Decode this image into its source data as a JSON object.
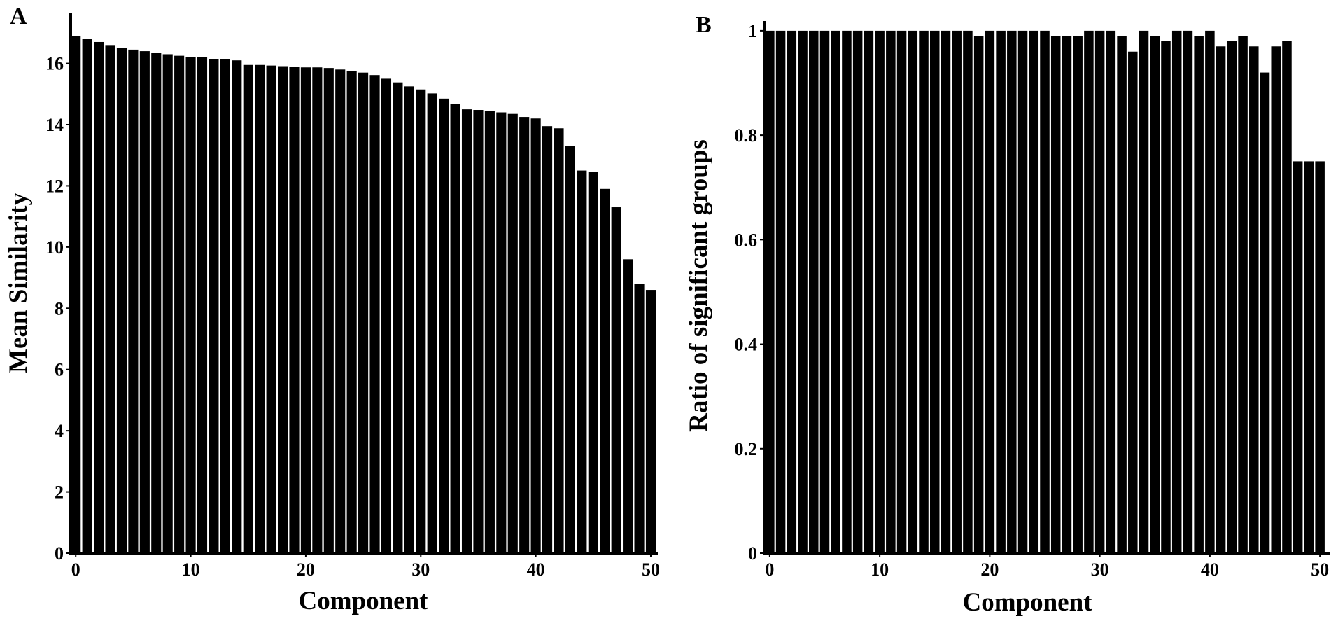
{
  "chart_data": [
    {
      "panel": "A",
      "type": "bar",
      "xlabel": "Component",
      "ylabel": "Mean Similarity",
      "x": [
        0,
        1,
        2,
        3,
        4,
        5,
        6,
        7,
        8,
        9,
        10,
        11,
        12,
        13,
        14,
        15,
        16,
        17,
        18,
        19,
        20,
        21,
        22,
        23,
        24,
        25,
        26,
        27,
        28,
        29,
        30,
        31,
        32,
        33,
        34,
        35,
        36,
        37,
        38,
        39,
        40,
        41,
        42,
        43,
        44,
        45,
        46,
        47,
        48,
        49,
        50
      ],
      "values": [
        16.9,
        16.8,
        16.7,
        16.6,
        16.5,
        16.45,
        16.4,
        16.35,
        16.3,
        16.25,
        16.2,
        16.2,
        16.15,
        16.15,
        16.1,
        15.95,
        15.95,
        15.93,
        15.91,
        15.89,
        15.87,
        15.87,
        15.85,
        15.8,
        15.75,
        15.7,
        15.62,
        15.5,
        15.38,
        15.25,
        15.15,
        15.02,
        14.85,
        14.68,
        14.5,
        14.48,
        14.45,
        14.4,
        14.35,
        14.25,
        14.2,
        13.95,
        13.88,
        13.3,
        12.5,
        12.45,
        11.9,
        11.3,
        9.6,
        8.8,
        8.6
      ],
      "xlim": [
        -0.5,
        50.5
      ],
      "ylim": [
        0,
        17.5
      ],
      "xticks": [
        0,
        10,
        20,
        30,
        40,
        50
      ],
      "yticks": [
        0,
        2,
        4,
        6,
        8,
        10,
        12,
        14,
        16
      ],
      "grid": false
    },
    {
      "panel": "B",
      "type": "bar",
      "xlabel": "Component",
      "ylabel": "Ratio of significant groups",
      "x": [
        0,
        1,
        2,
        3,
        4,
        5,
        6,
        7,
        8,
        9,
        10,
        11,
        12,
        13,
        14,
        15,
        16,
        17,
        18,
        19,
        20,
        21,
        22,
        23,
        24,
        25,
        26,
        27,
        28,
        29,
        30,
        31,
        32,
        33,
        34,
        35,
        36,
        37,
        38,
        39,
        40,
        41,
        42,
        43,
        44,
        45,
        46,
        47,
        48,
        49,
        50
      ],
      "values": [
        1.0,
        1.0,
        1.0,
        1.0,
        1.0,
        1.0,
        1.0,
        1.0,
        1.0,
        1.0,
        1.0,
        1.0,
        1.0,
        1.0,
        1.0,
        1.0,
        1.0,
        1.0,
        1.0,
        0.99,
        1.0,
        1.0,
        1.0,
        1.0,
        1.0,
        1.0,
        0.99,
        0.99,
        0.99,
        1.0,
        1.0,
        1.0,
        0.99,
        0.96,
        1.0,
        0.99,
        0.98,
        1.0,
        1.0,
        0.99,
        1.0,
        0.97,
        0.98,
        0.99,
        0.97,
        0.92,
        0.97,
        0.98,
        0.75,
        0.75,
        0.75
      ],
      "xlim": [
        -0.5,
        50.5
      ],
      "ylim": [
        0,
        1.015
      ],
      "xticks": [
        0,
        10,
        20,
        30,
        40,
        50
      ],
      "yticks": [
        0,
        0.2,
        0.4,
        0.6,
        0.8,
        1
      ],
      "yticklabels": [
        "0",
        "0.2",
        "0.4",
        "0.6",
        "0.8",
        "1"
      ],
      "grid": false
    }
  ]
}
